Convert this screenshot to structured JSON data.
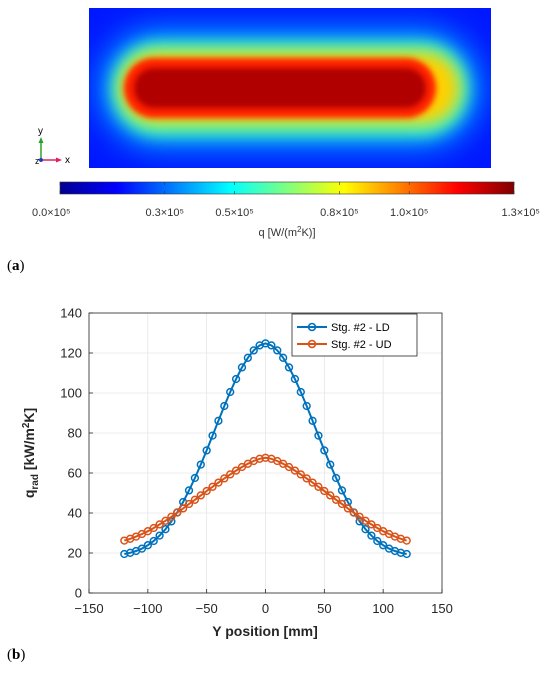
{
  "panel_a": {
    "label": "a",
    "colorbar": {
      "tick_labels": [
        "0.0×10⁵",
        "0.3×10⁵",
        "0.5×10⁵",
        "0.8×10⁵",
        "1.0×10⁵",
        "1.3×10⁵"
      ],
      "tick_values": [
        0,
        0.3,
        0.5,
        0.8,
        1.0,
        1.3
      ],
      "range": [
        0,
        1.3
      ],
      "title": "q [W/(m²K)]",
      "colormap": "jet"
    },
    "axis_triad": {
      "x_label": "x",
      "y_label": "y",
      "z_label": "z"
    }
  },
  "chart_data": {
    "type": "line",
    "panel_label": "b",
    "xlabel": "Y position [mm]",
    "ylabel": "q_rad [kW/m²K]",
    "ylabel_main": "q",
    "ylabel_sub": "rad",
    "ylabel_unit_start": " [kW/m",
    "ylabel_unit_sup": "2",
    "ylabel_unit_end": "K]",
    "xlim": [
      -150,
      150
    ],
    "ylim": [
      0,
      140
    ],
    "xticks": [
      -150,
      -100,
      -50,
      0,
      50,
      100,
      150
    ],
    "yticks": [
      0,
      20,
      40,
      60,
      80,
      100,
      120,
      140
    ],
    "xtick_labels": [
      "−150",
      "−100",
      "−50",
      "0",
      "50",
      "100",
      "150"
    ],
    "ytick_labels": [
      "0",
      "20",
      "40",
      "60",
      "80",
      "100",
      "120",
      "140"
    ],
    "grid": true,
    "legend_position": "top-right",
    "marker": "circle",
    "x": [
      -120,
      -115,
      -110,
      -105,
      -100,
      -95,
      -90,
      -85,
      -80,
      -75,
      -70,
      -65,
      -60,
      -55,
      -50,
      -45,
      -40,
      -35,
      -30,
      -25,
      -20,
      -15,
      -10,
      -5,
      0,
      5,
      10,
      15,
      20,
      25,
      30,
      35,
      40,
      45,
      50,
      55,
      60,
      65,
      70,
      75,
      80,
      85,
      90,
      95,
      100,
      105,
      110,
      115,
      120
    ],
    "series": [
      {
        "name": "Stg. #2 - LD",
        "color": "#0072bd",
        "values": [
          19.5,
          20.1,
          21.0,
          22.2,
          23.9,
          26.0,
          28.7,
          31.9,
          35.8,
          40.3,
          45.5,
          51.3,
          57.5,
          64.2,
          71.3,
          78.7,
          86.1,
          93.5,
          100.5,
          107.0,
          112.8,
          117.6,
          121.3,
          123.8,
          124.8,
          123.8,
          121.3,
          117.6,
          112.8,
          107.0,
          100.5,
          93.5,
          86.1,
          78.7,
          71.3,
          64.2,
          57.5,
          51.3,
          45.5,
          40.3,
          35.8,
          31.9,
          28.7,
          26.0,
          23.9,
          22.2,
          21.0,
          20.1,
          19.5
        ]
      },
      {
        "name": "Stg. #2 - UD",
        "color": "#d95319",
        "values": [
          26.2,
          27.1,
          28.2,
          29.5,
          30.9,
          32.5,
          34.3,
          36.1,
          38.1,
          40.2,
          42.3,
          44.5,
          46.6,
          48.8,
          51.0,
          53.1,
          55.2,
          57.3,
          59.3,
          61.2,
          63.0,
          64.6,
          66.0,
          67.1,
          67.6,
          67.1,
          66.0,
          64.6,
          63.0,
          61.2,
          59.3,
          57.3,
          55.2,
          53.1,
          51.0,
          48.8,
          46.6,
          44.5,
          42.3,
          40.2,
          38.1,
          36.1,
          34.3,
          32.5,
          30.9,
          29.5,
          28.2,
          27.1,
          26.2
        ]
      }
    ]
  }
}
